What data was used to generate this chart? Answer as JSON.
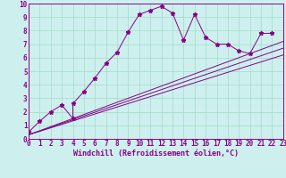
{
  "title": "",
  "xlabel": "Windchill (Refroidissement éolien,°C)",
  "xlim": [
    0,
    23
  ],
  "ylim": [
    0,
    10
  ],
  "background_color": "#cdf0ee",
  "grid_color": "#aaddcc",
  "line_color": "#880088",
  "scatter_x": [
    0,
    1,
    2,
    3,
    4,
    4,
    5,
    6,
    7,
    8,
    9,
    10,
    11,
    12,
    13,
    14,
    15,
    16,
    17,
    18,
    19,
    20,
    21,
    22
  ],
  "scatter_y": [
    0.5,
    1.3,
    2.0,
    2.5,
    1.5,
    2.6,
    3.5,
    4.5,
    5.6,
    6.4,
    7.9,
    9.2,
    9.5,
    9.8,
    9.3,
    7.3,
    9.2,
    7.5,
    7.0,
    7.0,
    6.5,
    6.3,
    7.8,
    7.8
  ],
  "line1_x": [
    0,
    23
  ],
  "line1_y": [
    0.3,
    6.2
  ],
  "line2_x": [
    0,
    23
  ],
  "line2_y": [
    0.3,
    6.7
  ],
  "line3_x": [
    0,
    23
  ],
  "line3_y": [
    0.3,
    7.2
  ],
  "xtick_labels": [
    "0",
    "1",
    "2",
    "3",
    "4",
    "5",
    "6",
    "7",
    "8",
    "9",
    "10",
    "11",
    "12",
    "13",
    "14",
    "15",
    "16",
    "17",
    "18",
    "19",
    "20",
    "21",
    "22",
    "23"
  ],
  "ytick_labels": [
    "0",
    "1",
    "2",
    "3",
    "4",
    "5",
    "6",
    "7",
    "8",
    "9",
    "10"
  ],
  "tick_fontsize": 5.5,
  "xlabel_fontsize": 6.0
}
